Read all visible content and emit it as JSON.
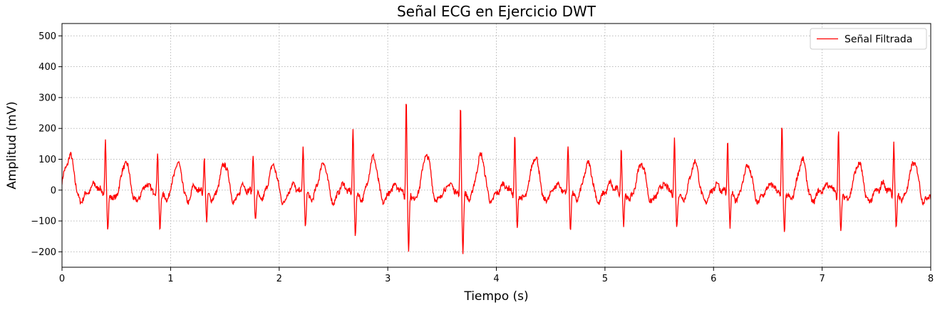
{
  "chart_data": {
    "type": "line",
    "title": "Señal ECG en Ejercicio DWT",
    "xlabel": "Tiempo (s)",
    "ylabel": "Amplitud (mV)",
    "xlim": [
      0,
      8
    ],
    "ylim": [
      -250,
      540
    ],
    "xticks": [
      0,
      1,
      2,
      3,
      4,
      5,
      6,
      7,
      8
    ],
    "yticks": [
      -200,
      -100,
      0,
      100,
      200,
      300,
      400,
      500
    ],
    "ytick_labels": [
      "−200",
      "−100",
      "0",
      "100",
      "200",
      "300",
      "400",
      "500"
    ],
    "grid": true,
    "grid_style": "dotted",
    "legend_position": "top-right",
    "colors": {
      "signal": "#ff0000",
      "grid": "#b0b0b0"
    },
    "series": [
      {
        "name": "Señal Filtrada",
        "beats": [
          {
            "t": 0.08,
            "r": 0.0,
            "s": 0.0,
            "tw": 115
          },
          {
            "t": 0.4,
            "r": 160,
            "s": -125,
            "tw": 92
          },
          {
            "t": 0.88,
            "r": 120,
            "s": -122,
            "tw": 88
          },
          {
            "t": 1.31,
            "r": 115,
            "s": -98,
            "tw": 88
          },
          {
            "t": 1.76,
            "r": 125,
            "s": -95,
            "tw": 82
          },
          {
            "t": 2.22,
            "r": 145,
            "s": -115,
            "tw": 90
          },
          {
            "t": 2.68,
            "r": 202,
            "s": -140,
            "tw": 108
          },
          {
            "t": 3.17,
            "r": 303,
            "s": -192,
            "tw": 118
          },
          {
            "t": 3.67,
            "r": 272,
            "s": -190,
            "tw": 115
          },
          {
            "t": 4.17,
            "r": 180,
            "s": -125,
            "tw": 112
          },
          {
            "t": 4.66,
            "r": 150,
            "s": -118,
            "tw": 88
          },
          {
            "t": 5.15,
            "r": 140,
            "s": -112,
            "tw": 90
          },
          {
            "t": 5.64,
            "r": 163,
            "s": -112,
            "tw": 93
          },
          {
            "t": 6.13,
            "r": 165,
            "s": -115,
            "tw": 82
          },
          {
            "t": 6.63,
            "r": 205,
            "s": -132,
            "tw": 100
          },
          {
            "t": 7.15,
            "r": 195,
            "s": -138,
            "tw": 90
          },
          {
            "t": 7.66,
            "r": 158,
            "s": -128,
            "tw": 93
          }
        ],
        "end": {
          "t": 8.0,
          "y": -30
        }
      }
    ]
  }
}
